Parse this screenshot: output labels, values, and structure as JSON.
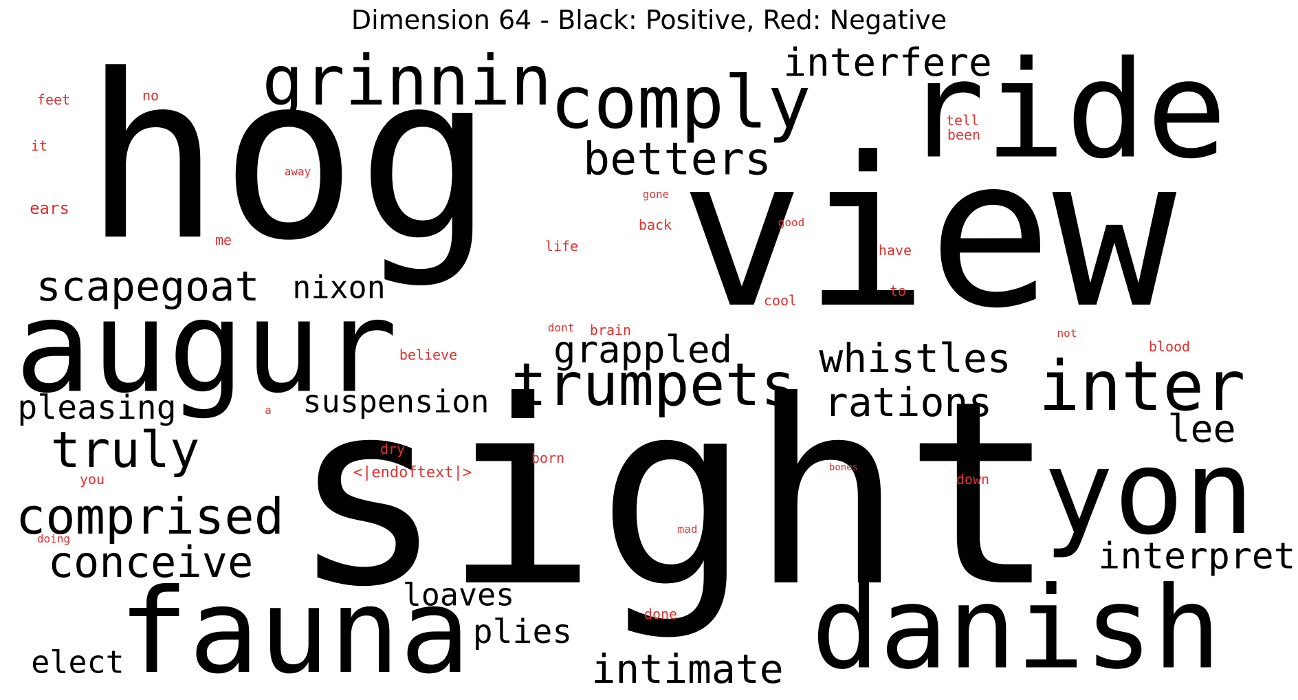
{
  "title": "Dimension 64 - Black: Positive, Red: Negative",
  "colors": {
    "positive": "#000000",
    "negative": "#e03030",
    "background": "#ffffff"
  },
  "positive_words": [
    "hog",
    "view",
    "sight",
    "augur",
    "ride",
    "comply",
    "grinnin",
    "interfere",
    "betters",
    "scapegoat",
    "nixon",
    "grappled",
    "trumpets",
    "whistles",
    "inter",
    "rations",
    "pleasing",
    "suspension",
    "truly",
    "lee",
    "yon",
    "comprised",
    "conceive",
    "interpret",
    "fauna",
    "danish",
    "loaves",
    "plies",
    "elect",
    "intimate"
  ],
  "negative_words": [
    "feet",
    "no",
    "it",
    "away",
    "tell",
    "been",
    "ears",
    "gone",
    "back",
    "good",
    "me",
    "life",
    "have",
    "cool",
    "to",
    "dont",
    "brain",
    "not",
    "blood",
    "believe",
    "a",
    "dry",
    "born",
    "you",
    "<|endoftext|>",
    "bones",
    "down",
    "doing",
    "mad",
    "done"
  ]
}
